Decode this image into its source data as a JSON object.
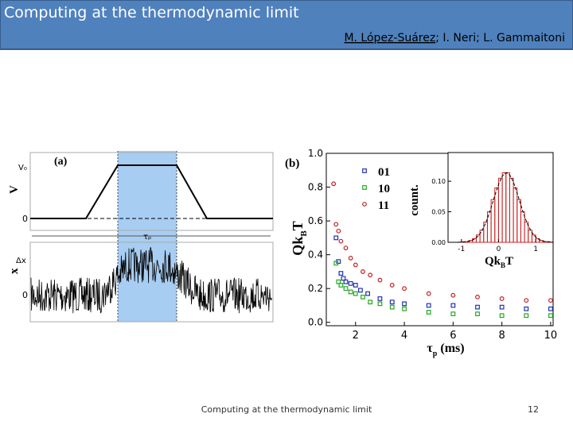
{
  "header": {
    "title": "Computing at the thermodynamic limit",
    "authors": [
      "M. López-Suárez",
      "; I. Neri; L. Gammaitoni"
    ]
  },
  "figure": {
    "panel_a": {
      "label": "(a)",
      "v_label": "V",
      "v0_label": "V₀",
      "zero_top": "0",
      "dx_label": "Δx",
      "x_label": "x",
      "zero_bottom": "0",
      "tau_label": "τₚ"
    },
    "panel_b": {
      "type": "scatter",
      "label": "(b)",
      "ylabel": {
        "main": "Qk",
        "sub": "B",
        "end": "T"
      },
      "xlabel": {
        "main": "τ",
        "sub": "p",
        "end": " (ms)"
      },
      "xlim": [
        0.8,
        10.1
      ],
      "ylim": [
        -0.02,
        1.0
      ],
      "xticks": [
        2,
        4,
        6,
        8,
        10
      ],
      "yticks": [
        {
          "value": 0,
          "label": "0.0"
        },
        0.2,
        0.4,
        0.6,
        0.8,
        {
          "value": 1,
          "label": "1.0"
        }
      ],
      "series": [
        {
          "name": "01",
          "color": "#2233b0",
          "x": [
            1.2,
            1.3,
            1.4,
            1.5,
            1.6,
            1.8,
            2,
            2.2,
            2.5,
            3,
            3.5,
            4,
            5,
            6,
            7,
            8,
            9,
            10
          ],
          "values": [
            0.5,
            0.36,
            0.29,
            0.26,
            0.24,
            0.23,
            0.22,
            0.19,
            0.17,
            0.14,
            0.12,
            0.11,
            0.1,
            0.1,
            0.09,
            0.09,
            0.08,
            0.08
          ]
        },
        {
          "name": "10",
          "color": "#22aa22",
          "x": [
            1.2,
            1.3,
            1.4,
            1.6,
            1.8,
            2,
            2.3,
            2.6,
            3,
            3.5,
            4,
            5,
            6,
            7,
            8,
            9,
            10
          ],
          "values": [
            0.35,
            0.24,
            0.22,
            0.2,
            0.18,
            0.17,
            0.15,
            0.12,
            0.11,
            0.09,
            0.08,
            0.06,
            0.05,
            0.05,
            0.04,
            0.04,
            0.04
          ]
        },
        {
          "name": "11",
          "color": "#c02020",
          "x": [
            1.1,
            1.2,
            1.3,
            1.4,
            1.6,
            1.8,
            2,
            2.3,
            2.6,
            3,
            3.5,
            4,
            5,
            6,
            7,
            8,
            9,
            10
          ],
          "values": [
            0.82,
            0.58,
            0.54,
            0.48,
            0.44,
            0.38,
            0.34,
            0.3,
            0.28,
            0.25,
            0.22,
            0.2,
            0.17,
            0.16,
            0.15,
            0.14,
            0.13,
            0.13
          ]
        }
      ],
      "inset": {
        "type": "histogram",
        "ylabel": "count.",
        "xlabel": {
          "main": "Qk",
          "sub": "B",
          "end": "T"
        },
        "xlim": [
          -1.36,
          1.47
        ],
        "ylim": [
          0,
          0.147
        ],
        "xticks": [
          -1,
          0,
          1
        ],
        "yticks": [
          {
            "value": 0,
            "label": "0.00"
          },
          {
            "value": 0.05,
            "label": "0.05"
          },
          {
            "value": 0.1,
            "label": "0.10"
          }
        ],
        "color": "#cc2222",
        "bins": [
          -1.0,
          -0.9,
          -0.8,
          -0.7,
          -0.6,
          -0.5,
          -0.4,
          -0.3,
          -0.2,
          -0.1,
          0,
          0.1,
          0.2,
          0.3,
          0.4,
          0.5,
          0.6,
          0.7,
          0.8,
          0.9,
          1.0,
          1.1,
          1.2,
          1.3,
          1.4
        ],
        "values": [
          0.001,
          0.001,
          0.003,
          0.006,
          0.012,
          0.02,
          0.033,
          0.05,
          0.07,
          0.089,
          0.105,
          0.114,
          0.114,
          0.105,
          0.089,
          0.07,
          0.05,
          0.033,
          0.02,
          0.012,
          0.006,
          0.003,
          0.001,
          0.001
        ]
      }
    }
  },
  "footer": {
    "text": "Computing at the thermodynamic limit",
    "page": "12"
  }
}
